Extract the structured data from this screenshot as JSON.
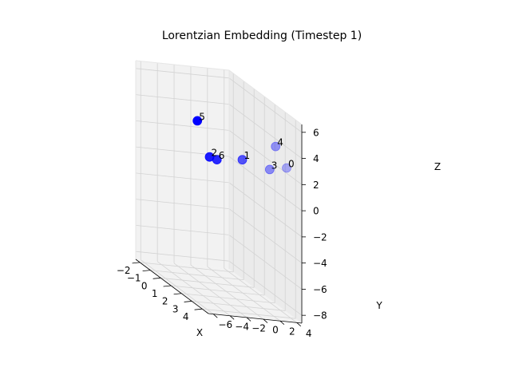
{
  "chart_data": {
    "type": "scatter",
    "projection": "3d",
    "title": "Lorentzian Embedding (Timestep 1)",
    "xlabel": "X",
    "ylabel": "Y",
    "zlabel": "Z",
    "xlim": [
      -2.4,
      4.6
    ],
    "ylim": [
      -6.6,
      4.6
    ],
    "zlim": [
      -8.6,
      6.6
    ],
    "xticks": [
      -2,
      -1,
      0,
      1,
      2,
      3,
      4
    ],
    "yticks": [
      -6,
      -4,
      -2,
      0,
      2,
      4
    ],
    "zticks": [
      -8,
      -6,
      -4,
      -2,
      0,
      2,
      4,
      6
    ],
    "grid": true,
    "marker_color": "#0000ff",
    "points": [
      {
        "label": "0",
        "x": 4.1,
        "y": 3.4,
        "z": 2.9
      },
      {
        "label": "1",
        "x": 1.6,
        "y": 1.2,
        "z": 1.9
      },
      {
        "label": "2",
        "x": 0.7,
        "y": -1.6,
        "z": 1.4
      },
      {
        "label": "3",
        "x": 4.0,
        "y": 1.5,
        "z": 2.6
      },
      {
        "label": "4",
        "x": 3.6,
        "y": 2.7,
        "z": 4.2
      },
      {
        "label": "5",
        "x": -0.8,
        "y": -1.2,
        "z": 3.3
      },
      {
        "label": "6",
        "x": 1.0,
        "y": -1.1,
        "z": 1.4
      }
    ]
  }
}
